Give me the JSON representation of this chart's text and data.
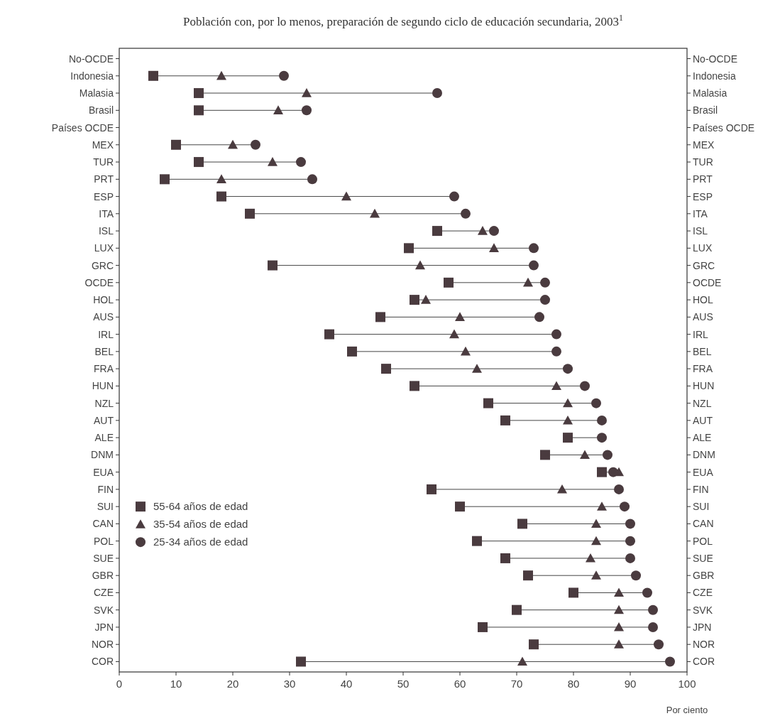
{
  "chart_data": {
    "type": "scatter",
    "orientation": "horizontal",
    "title": "Población con, por lo menos, preparación de segundo ciclo de educación secundaria, 2003$^{1}$",
    "xlabel": "Por ciento",
    "categories": [
      "No-OCDE",
      "Indonesia",
      "Malasia",
      "Brasil",
      "Países OCDE",
      "MEX",
      "TUR",
      "PRT",
      "ESP",
      "ITA",
      "ISL",
      "LUX",
      "GRC",
      "OCDE",
      "HOL",
      "AUS",
      "IRL",
      "BEL",
      "FRA",
      "HUN",
      "NZL",
      "AUT",
      "ALE",
      "DNM",
      "EUA",
      "FIN",
      "SUI",
      "CAN",
      "POL",
      "SUE",
      "GBR",
      "CZE",
      "SVK",
      "JPN",
      "NOR",
      "COR"
    ],
    "series": [
      {
        "name": "55-64 años de edad",
        "color": "#4a3b3f",
        "marker": "square",
        "values": [
          null,
          6,
          14,
          14,
          null,
          10,
          14,
          8,
          18,
          23,
          56,
          51,
          27,
          58,
          52,
          46,
          37,
          41,
          47,
          52,
          65,
          68,
          79,
          75,
          85,
          55,
          60,
          71,
          63,
          68,
          72,
          80,
          70,
          64,
          73,
          32
        ]
      },
      {
        "name": "35-54 años de edad",
        "color": "#4a3b3f",
        "marker": "triangle",
        "values": [
          null,
          18,
          33,
          28,
          null,
          20,
          27,
          18,
          40,
          45,
          64,
          66,
          53,
          72,
          54,
          60,
          59,
          61,
          63,
          77,
          79,
          79,
          null,
          82,
          88,
          78,
          85,
          84,
          84,
          83,
          84,
          88,
          88,
          88,
          88,
          71
        ]
      },
      {
        "name": "25-34 años de edad",
        "color": "#4a3b3f",
        "marker": "circle",
        "values": [
          null,
          29,
          56,
          33,
          null,
          24,
          32,
          34,
          59,
          61,
          66,
          73,
          73,
          75,
          75,
          74,
          77,
          77,
          79,
          82,
          84,
          85,
          85,
          86,
          87,
          88,
          89,
          90,
          90,
          90,
          91,
          93,
          94,
          94,
          95,
          97
        ]
      }
    ],
    "xlim": [
      0,
      100
    ],
    "xticks": [
      0,
      10,
      20,
      30,
      40,
      50,
      60,
      70,
      80,
      90,
      100
    ],
    "grid": false,
    "legend": "bottom left"
  }
}
